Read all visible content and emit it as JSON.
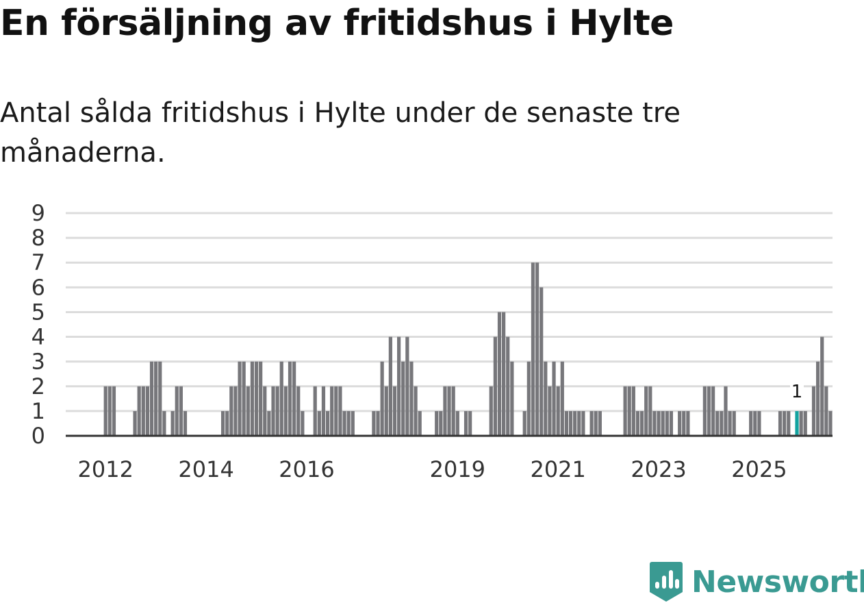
{
  "title": "En försäljning av fritidshus i Hylte",
  "subtitle": "Antal sålda fritidshus i Hylte under de senaste tre månaderna.",
  "brand": {
    "name": "Newsworthy",
    "icon": "newsworthy-logo-icon",
    "color": "#3a9a92"
  },
  "colors": {
    "bar": "#77777b",
    "highlight": "#13a3a0",
    "grid": "#dcdcdc",
    "axis": "#333333"
  },
  "chart_data": {
    "type": "bar",
    "title": "En försäljning av fritidshus i Hylte",
    "subtitle": "Antal sålda fritidshus i Hylte under de senaste tre månaderna.",
    "xlabel": "",
    "ylabel": "",
    "x_unit": "month",
    "start_month": "2011-12",
    "ylim": [
      0,
      9
    ],
    "yticks": [
      0,
      1,
      2,
      3,
      4,
      5,
      6,
      7,
      8,
      9
    ],
    "xticks": [
      {
        "label": "2012",
        "month": "2012-01"
      },
      {
        "label": "2014",
        "month": "2014-01"
      },
      {
        "label": "2016",
        "month": "2016-01"
      },
      {
        "label": "2019",
        "month": "2019-01"
      },
      {
        "label": "2021",
        "month": "2021-01"
      },
      {
        "label": "2023",
        "month": "2023-01"
      },
      {
        "label": "2025",
        "month": "2025-01"
      }
    ],
    "grid": true,
    "values": [
      0,
      2,
      2,
      2,
      0,
      0,
      0,
      0,
      1,
      2,
      2,
      2,
      3,
      3,
      3,
      1,
      0,
      1,
      2,
      2,
      1,
      0,
      0,
      0,
      0,
      0,
      0,
      0,
      0,
      1,
      1,
      2,
      2,
      3,
      3,
      2,
      3,
      3,
      3,
      2,
      1,
      2,
      2,
      3,
      2,
      3,
      3,
      2,
      1,
      0,
      0,
      2,
      1,
      2,
      1,
      2,
      2,
      2,
      1,
      1,
      1,
      0,
      0,
      0,
      0,
      1,
      1,
      3,
      2,
      4,
      2,
      4,
      3,
      4,
      3,
      2,
      1,
      0,
      0,
      0,
      1,
      1,
      2,
      2,
      2,
      1,
      0,
      1,
      1,
      0,
      0,
      0,
      0,
      2,
      4,
      5,
      5,
      4,
      3,
      0,
      0,
      1,
      3,
      7,
      7,
      6,
      3,
      2,
      3,
      2,
      3,
      1,
      1,
      1,
      1,
      1,
      0,
      1,
      1,
      1,
      0,
      0,
      0,
      0,
      0,
      2,
      2,
      2,
      1,
      1,
      2,
      2,
      1,
      1,
      1,
      1,
      1,
      0,
      1,
      1,
      1,
      0,
      0,
      0,
      2,
      2,
      2,
      1,
      1,
      2,
      1,
      1,
      0,
      0,
      0,
      1,
      1,
      1,
      0,
      0,
      0,
      0,
      1,
      1,
      1,
      0,
      1,
      1,
      1,
      0,
      2,
      3,
      4,
      2,
      1
    ],
    "highlight": {
      "index": 166,
      "label": "1"
    }
  }
}
